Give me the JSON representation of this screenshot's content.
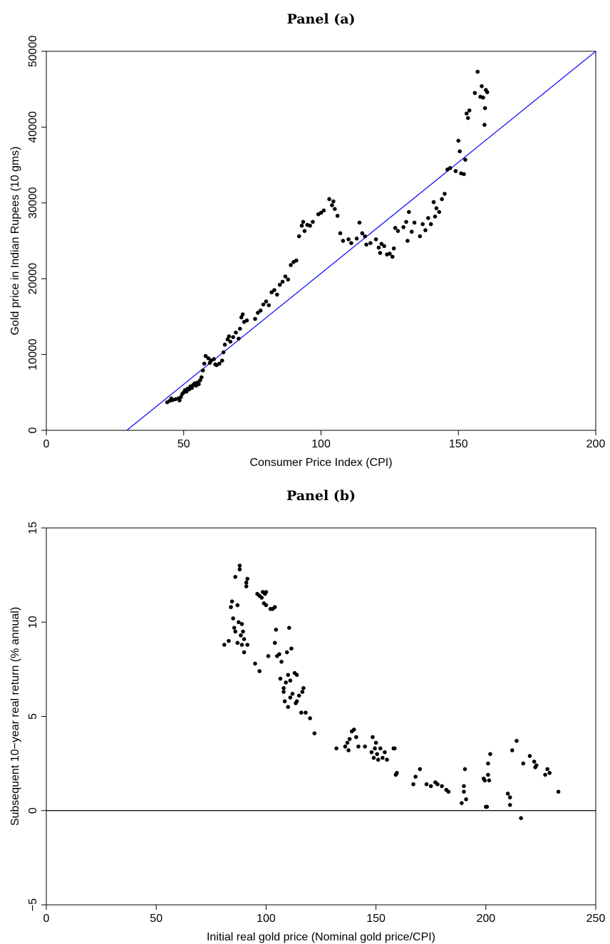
{
  "chart_data": [
    {
      "type": "scatter",
      "title": "Panel (a)",
      "x_label": "Consumer Price Index (CPI)",
      "y_label": "Gold price in Indian Rupees (10 gms)",
      "xlim": [
        0,
        200
      ],
      "ylim": [
        0,
        50000
      ],
      "xticks": [
        0,
        50,
        100,
        150,
        200
      ],
      "yticks": [
        0,
        10000,
        20000,
        30000,
        40000,
        50000
      ],
      "grid": false,
      "color": "#000000",
      "x": [
        44,
        45,
        45.5,
        46,
        47,
        48,
        48.5,
        49,
        49.5,
        50,
        50.5,
        51,
        51.5,
        52,
        52.5,
        53,
        53.5,
        54,
        54.5,
        55,
        55.5,
        56,
        56.5,
        57,
        57.5,
        58,
        59,
        59.5,
        60,
        61,
        61.5,
        62,
        63,
        64,
        64.5,
        65,
        66,
        66.5,
        67,
        68,
        69,
        70,
        70.5,
        71,
        71.5,
        72,
        73,
        76,
        77,
        78,
        79,
        80,
        81,
        82,
        83,
        84,
        85,
        86,
        87,
        88,
        89,
        90,
        91,
        92,
        93,
        93.5,
        94,
        95,
        96,
        97,
        99,
        100,
        101,
        103,
        104,
        104.5,
        105,
        106,
        107,
        108,
        110,
        111,
        113,
        114,
        115,
        116,
        116.5,
        118,
        120,
        121,
        121.5,
        122,
        123,
        124,
        125,
        126,
        126.5,
        127,
        128,
        130,
        131,
        131.5,
        132,
        133,
        134,
        136,
        137,
        138,
        139,
        140,
        141,
        141.5,
        142,
        143,
        144,
        145,
        146,
        147,
        149,
        150,
        150.5,
        151,
        152,
        152.5,
        153,
        153.5,
        154,
        156,
        157,
        158,
        158.5,
        159,
        159.5,
        159.7,
        160,
        160.5
      ],
      "values": [
        3700,
        3900,
        4200,
        4000,
        4100,
        4200,
        3950,
        4400,
        4800,
        5000,
        5300,
        5100,
        5500,
        5400,
        5800,
        5600,
        6000,
        6200,
        5900,
        6300,
        6100,
        6600,
        7000,
        7900,
        8800,
        9800,
        9500,
        8900,
        9200,
        9400,
        8700,
        8600,
        8800,
        9200,
        10300,
        11300,
        12000,
        12400,
        11700,
        12300,
        12900,
        12100,
        13400,
        14900,
        15300,
        14300,
        14500,
        14700,
        15500,
        15800,
        16600,
        17000,
        16500,
        18200,
        18500,
        17900,
        19200,
        19600,
        20300,
        19900,
        21800,
        22200,
        22400,
        25600,
        27000,
        27500,
        26300,
        27100,
        27000,
        27500,
        28500,
        28700,
        29000,
        30500,
        29700,
        30200,
        29200,
        28300,
        26000,
        25000,
        25200,
        24700,
        25300,
        27400,
        26000,
        25600,
        24500,
        24700,
        25200,
        24100,
        23400,
        24600,
        24300,
        23200,
        23300,
        22900,
        24000,
        26700,
        26300,
        26800,
        27500,
        25000,
        28800,
        26200,
        27400,
        25600,
        27200,
        26400,
        28000,
        27200,
        30100,
        28200,
        29300,
        28800,
        30500,
        31200,
        34400,
        34600,
        34200,
        38200,
        36800,
        33900,
        33800,
        35700,
        41800,
        41200,
        42200,
        44500,
        47300,
        44000,
        45400,
        43900,
        40300,
        42500,
        44900,
        44600
      ],
      "lines": [
        {
          "color": "#0000ff",
          "x": [
            29.3,
            200
          ],
          "values": [
            0,
            50000
          ]
        }
      ]
    },
    {
      "type": "scatter",
      "title": "Panel (b)",
      "x_label": "Initial real gold price (Nominal gold price/CPI)",
      "y_label": "Subsequent 10−year real return (% annual)",
      "xlim": [
        0,
        250
      ],
      "ylim": [
        -5,
        15
      ],
      "xticks": [
        0,
        50,
        100,
        150,
        200,
        250
      ],
      "yticks": [
        {
          "value": -5,
          "label": "−5"
        },
        0,
        5,
        10,
        15
      ],
      "grid": false,
      "color": "#000000",
      "x": [
        81,
        83,
        84,
        84.5,
        85,
        85.5,
        86,
        86,
        87,
        87,
        87.5,
        88,
        88,
        88.5,
        89,
        89,
        89.5,
        90,
        90,
        91,
        91,
        91.5,
        91.5,
        95,
        96,
        97,
        97,
        98,
        98.5,
        99,
        99.5,
        100,
        100,
        101,
        102,
        103,
        104,
        104,
        104.5,
        105,
        106,
        106.5,
        107,
        108,
        108,
        108.5,
        109,
        109.5,
        110,
        110,
        110.5,
        111,
        111,
        111.5,
        112,
        113,
        113.5,
        114,
        114,
        115,
        116,
        116.5,
        117,
        118,
        120,
        122,
        132,
        136,
        137,
        137.5,
        138,
        139,
        140,
        141,
        142,
        145,
        148,
        148.5,
        149,
        149.5,
        150,
        150.5,
        151,
        152,
        153,
        154,
        155,
        158,
        158.5,
        159,
        159.5,
        167,
        168,
        170,
        173,
        175,
        177,
        178,
        180,
        182,
        183,
        189,
        190,
        190,
        190.5,
        191,
        199,
        199.5,
        200,
        200.5,
        201,
        201,
        202,
        201.5,
        210,
        211,
        211,
        212,
        214,
        216,
        217,
        220,
        222,
        222.5,
        223,
        227,
        228,
        229,
        233
      ],
      "values": [
        8.8,
        9.0,
        10.8,
        11.1,
        10.2,
        9.7,
        12.4,
        9.5,
        10.9,
        8.9,
        10.0,
        13.0,
        12.8,
        9.3,
        9.9,
        8.8,
        9.5,
        8.4,
        9.1,
        12.1,
        11.9,
        12.3,
        8.8,
        7.8,
        11.5,
        7.4,
        11.4,
        11.3,
        11.6,
        11.0,
        11.5,
        10.9,
        11.6,
        8.2,
        10.7,
        10.7,
        10.8,
        8.9,
        9.6,
        8.2,
        8.3,
        7.0,
        7.9,
        6.3,
        6.5,
        5.8,
        6.8,
        8.4,
        7.2,
        5.5,
        9.7,
        6.9,
        6.0,
        8.6,
        6.2,
        7.3,
        5.7,
        7.2,
        5.8,
        6.1,
        5.2,
        6.3,
        6.5,
        5.2,
        4.9,
        4.1,
        3.3,
        3.4,
        3.6,
        3.2,
        3.8,
        4.2,
        4.3,
        3.9,
        3.4,
        3.4,
        3.1,
        3.9,
        2.8,
        3.3,
        3.6,
        3.0,
        2.7,
        3.3,
        2.8,
        3.1,
        2.7,
        3.3,
        3.3,
        1.9,
        2.0,
        1.4,
        1.8,
        2.2,
        1.4,
        1.3,
        1.5,
        1.4,
        1.3,
        1.1,
        1.0,
        0.4,
        1.3,
        1.0,
        2.2,
        0.6,
        1.7,
        1.6,
        0.2,
        0.2,
        2.5,
        1.9,
        3.0,
        1.6,
        0.9,
        0.3,
        0.7,
        3.2,
        3.7,
        -0.4,
        2.5,
        2.9,
        2.6,
        2.3,
        2.4,
        1.9,
        2.2,
        2.0,
        1.0
      ],
      "hline": 0,
      "hline_color": "#000000"
    }
  ]
}
